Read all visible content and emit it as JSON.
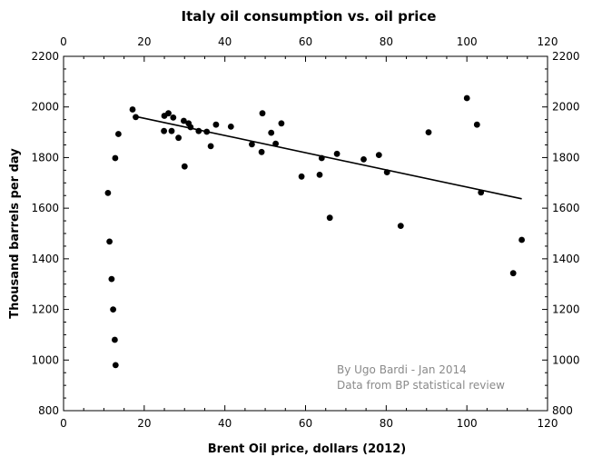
{
  "chart_data": {
    "type": "scatter",
    "title": "Italy oil consumption vs. oil price",
    "xlabel": "Brent Oil price, dollars (2012)",
    "ylabel": "Thousand barrels per day",
    "xlim": [
      0,
      120
    ],
    "ylim": [
      800,
      2200
    ],
    "x_ticks": [
      0,
      20,
      40,
      60,
      80,
      100,
      120
    ],
    "y_ticks": [
      800,
      1000,
      1200,
      1400,
      1600,
      1800,
      2000,
      2200
    ],
    "grid": false,
    "ticks_mirrored": true,
    "annotations": [
      "By Ugo Bardi - Jan 2014",
      "Data from BP statistical review"
    ],
    "series": [
      {
        "type": "scatter",
        "color": "#000000",
        "points": [
          [
            11.0,
            1660
          ],
          [
            11.4,
            1468
          ],
          [
            11.9,
            1320
          ],
          [
            12.3,
            1200
          ],
          [
            12.7,
            1080
          ],
          [
            12.9,
            980
          ],
          [
            12.8,
            1798
          ],
          [
            13.6,
            1893
          ],
          [
            17.1,
            1990
          ],
          [
            17.9,
            1960
          ],
          [
            24.9,
            1905
          ],
          [
            25.0,
            1965
          ],
          [
            26.0,
            1975
          ],
          [
            26.8,
            1905
          ],
          [
            27.2,
            1958
          ],
          [
            28.5,
            1878
          ],
          [
            29.8,
            1945
          ],
          [
            30.0,
            1765
          ],
          [
            31.0,
            1935
          ],
          [
            31.5,
            1920
          ],
          [
            33.5,
            1905
          ],
          [
            35.5,
            1902
          ],
          [
            36.5,
            1845
          ],
          [
            37.8,
            1930
          ],
          [
            41.5,
            1922
          ],
          [
            46.7,
            1852
          ],
          [
            49.1,
            1822
          ],
          [
            49.3,
            1975
          ],
          [
            51.5,
            1898
          ],
          [
            52.6,
            1855
          ],
          [
            54.0,
            1935
          ],
          [
            59.0,
            1725
          ],
          [
            63.5,
            1732
          ],
          [
            64.0,
            1798
          ],
          [
            66.0,
            1562
          ],
          [
            67.8,
            1815
          ],
          [
            74.4,
            1793
          ],
          [
            78.2,
            1810
          ],
          [
            80.2,
            1742
          ],
          [
            83.6,
            1530
          ],
          [
            90.5,
            1900
          ],
          [
            100.0,
            2035
          ],
          [
            102.5,
            1930
          ],
          [
            103.5,
            1662
          ],
          [
            111.5,
            1343
          ],
          [
            113.6,
            1475
          ]
        ]
      },
      {
        "type": "line",
        "name": "trend",
        "color": "#000000",
        "points": [
          [
            18,
            1962
          ],
          [
            113.6,
            1637
          ]
        ]
      }
    ]
  }
}
